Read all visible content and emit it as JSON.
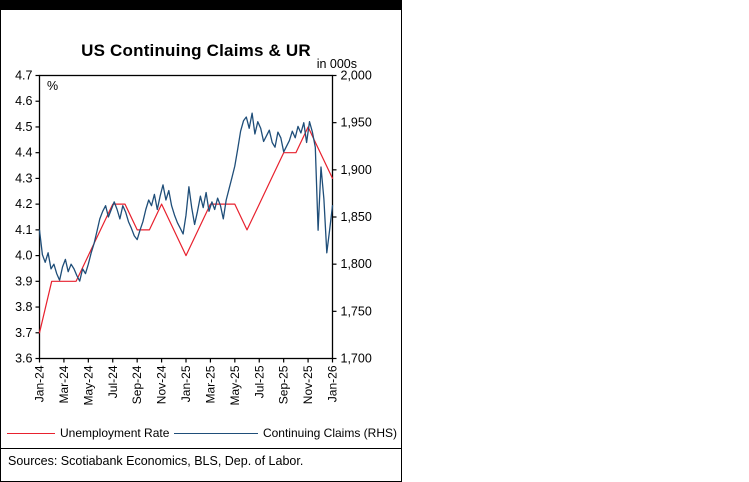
{
  "footer": {
    "sources": "Sources: Scotiabank Economics, BLS, Dep. of Labor."
  },
  "chart_data": {
    "type": "line",
    "title": "US Continuing Claims & UR",
    "legend_position": "bottom",
    "grid": false,
    "y_left": {
      "label": "%",
      "min": 3.6,
      "max": 4.7,
      "tick_step": 0.1,
      "ticks": [
        "4.7",
        "4.6",
        "4.5",
        "4.4",
        "4.3",
        "4.2",
        "4.1",
        "4.0",
        "3.9",
        "3.8",
        "3.7",
        "3.6"
      ]
    },
    "y_right": {
      "label": "in 000s",
      "min": 1700,
      "max": 2000,
      "tick_step": 50,
      "ticks": [
        "2,000",
        "1,950",
        "1,900",
        "1,850",
        "1,800",
        "1,750",
        "1,700"
      ]
    },
    "x": {
      "months": 25,
      "tick_labels": [
        "Jan-24",
        "Mar-24",
        "May-24",
        "Jul-24",
        "Sep-24",
        "Nov-24",
        "Jan-25",
        "Mar-25",
        "May-25",
        "Jul-25",
        "Sep-25",
        "Nov-25",
        "Jan-26"
      ]
    },
    "series": [
      {
        "id": "unemployment-rate",
        "name": "Unemployment Rate",
        "axis": "left",
        "color": "#e8212e",
        "width": 1.2,
        "frequency": "monthly",
        "values": [
          3.7,
          3.9,
          3.9,
          3.9,
          4.0,
          4.1,
          4.2,
          4.2,
          4.1,
          4.1,
          4.2,
          4.1,
          4.0,
          4.1,
          4.2,
          4.2,
          4.2,
          4.1,
          4.2,
          4.3,
          4.4,
          4.4,
          4.5,
          4.4,
          4.3
        ]
      },
      {
        "id": "continuing-claims",
        "name": "Continuing Claims (RHS)",
        "axis": "right",
        "color": "#1f4e79",
        "width": 1.3,
        "frequency": "weekly",
        "values": [
          1836,
          1810,
          1802,
          1812,
          1795,
          1800,
          1790,
          1783,
          1797,
          1805,
          1792,
          1800,
          1795,
          1788,
          1782,
          1795,
          1790,
          1800,
          1812,
          1822,
          1835,
          1848,
          1856,
          1862,
          1850,
          1858,
          1866,
          1858,
          1848,
          1862,
          1855,
          1845,
          1838,
          1830,
          1826,
          1836,
          1845,
          1858,
          1868,
          1862,
          1874,
          1858,
          1872,
          1884,
          1868,
          1878,
          1862,
          1852,
          1844,
          1838,
          1832,
          1852,
          1882,
          1860,
          1842,
          1856,
          1872,
          1860,
          1876,
          1856,
          1866,
          1858,
          1870,
          1862,
          1848,
          1868,
          1880,
          1892,
          1904,
          1922,
          1941,
          1952,
          1956,
          1944,
          1960,
          1938,
          1951,
          1944,
          1930,
          1936,
          1942,
          1929,
          1924,
          1940,
          1934,
          1919,
          1925,
          1931,
          1941,
          1934,
          1946,
          1939,
          1950,
          1929,
          1951,
          1940,
          1924,
          1836,
          1903,
          1869,
          1812,
          1836,
          1862
        ]
      }
    ]
  }
}
